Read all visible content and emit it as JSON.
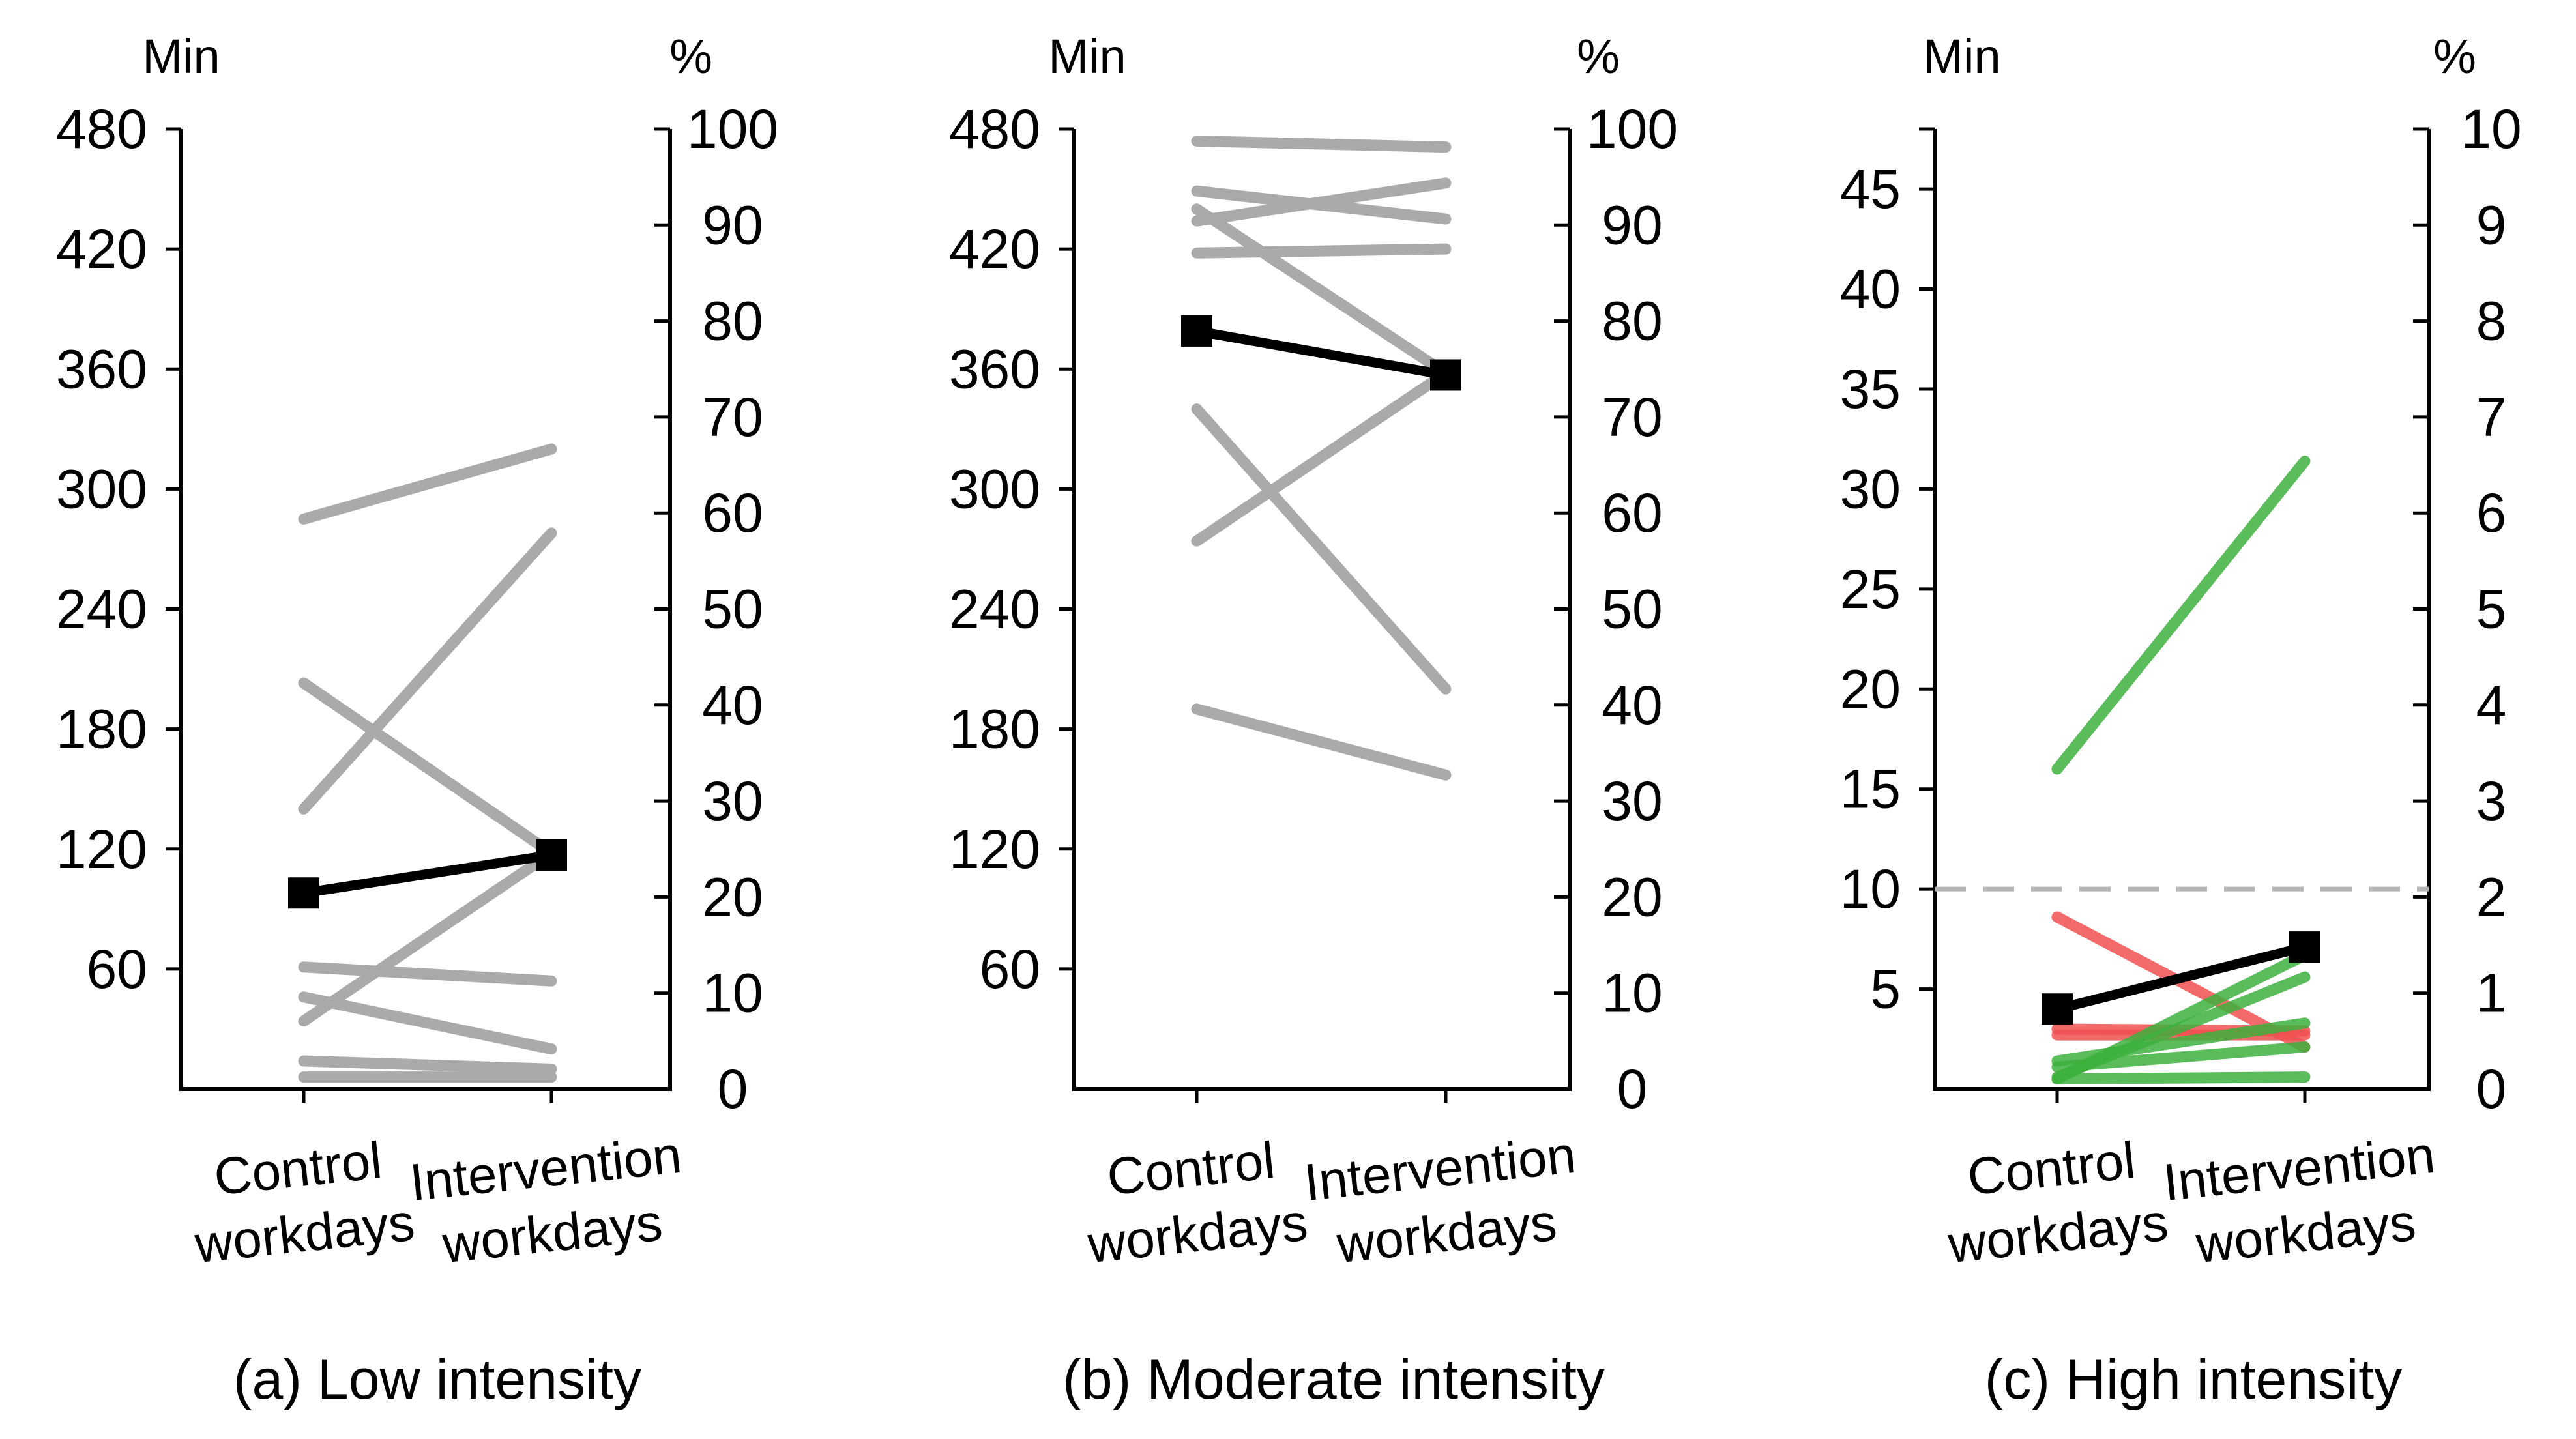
{
  "colors": {
    "axis": "#000000",
    "individual": "#aaaaaa",
    "mean": "#000000",
    "decrease": "#f05050",
    "increase": "#3db03d",
    "threshold": "#b4b4b4"
  },
  "chart_data": [
    {
      "type": "line",
      "caption": "(a) Low intensity",
      "left_unit": "Min",
      "right_unit": "%",
      "categories": [
        "Control workdays",
        "Intervention workdays"
      ],
      "category_lines": [
        [
          "Control",
          "workdays"
        ],
        [
          "Intervention",
          "workdays"
        ]
      ],
      "left_ylim": [
        0,
        480
      ],
      "left_ticks": [
        60,
        120,
        180,
        240,
        300,
        360,
        420,
        480
      ],
      "right_ylim": [
        0,
        100
      ],
      "right_ticks": [
        0,
        10,
        20,
        30,
        40,
        50,
        60,
        70,
        80,
        90,
        100
      ],
      "series": [
        {
          "name": "participant",
          "role": "individual",
          "values": [
            285,
            320
          ]
        },
        {
          "name": "participant",
          "role": "individual",
          "values": [
            140,
            278
          ]
        },
        {
          "name": "participant",
          "role": "individual",
          "values": [
            203,
            118
          ]
        },
        {
          "name": "participant",
          "role": "individual",
          "values": [
            34,
            118
          ]
        },
        {
          "name": "participant",
          "role": "individual",
          "values": [
            61,
            54
          ]
        },
        {
          "name": "participant",
          "role": "individual",
          "values": [
            46,
            20
          ]
        },
        {
          "name": "participant",
          "role": "individual",
          "values": [
            14,
            10
          ]
        },
        {
          "name": "participant",
          "role": "individual",
          "values": [
            6,
            6
          ]
        },
        {
          "name": "mean",
          "role": "mean",
          "values": [
            98,
            117
          ]
        }
      ]
    },
    {
      "type": "line",
      "caption": "(b) Moderate intensity",
      "left_unit": "Min",
      "right_unit": "%",
      "categories": [
        "Control workdays",
        "Intervention workdays"
      ],
      "category_lines": [
        [
          "Control",
          "workdays"
        ],
        [
          "Intervention",
          "workdays"
        ]
      ],
      "left_ylim": [
        0,
        480
      ],
      "left_ticks": [
        60,
        120,
        180,
        240,
        300,
        360,
        420,
        480
      ],
      "right_ylim": [
        0,
        100
      ],
      "right_ticks": [
        0,
        10,
        20,
        30,
        40,
        50,
        60,
        70,
        80,
        90,
        100
      ],
      "series": [
        {
          "name": "participant",
          "role": "individual",
          "values": [
            474,
            471
          ]
        },
        {
          "name": "participant",
          "role": "individual",
          "values": [
            449,
            435
          ]
        },
        {
          "name": "participant",
          "role": "individual",
          "values": [
            434,
            453
          ]
        },
        {
          "name": "participant",
          "role": "individual",
          "values": [
            418,
            420
          ]
        },
        {
          "name": "participant",
          "role": "individual",
          "values": [
            440,
            358
          ]
        },
        {
          "name": "participant",
          "role": "individual",
          "values": [
            274,
            358
          ]
        },
        {
          "name": "participant",
          "role": "individual",
          "values": [
            340,
            200
          ]
        },
        {
          "name": "participant",
          "role": "individual",
          "values": [
            190,
            157
          ]
        },
        {
          "name": "mean",
          "role": "mean",
          "values": [
            379,
            357
          ]
        }
      ]
    },
    {
      "type": "line",
      "caption": "(c) High intensity",
      "left_unit": "Min",
      "right_unit": "%",
      "categories": [
        "Control workdays",
        "Intervention workdays"
      ],
      "category_lines": [
        [
          "Control",
          "workdays"
        ],
        [
          "Intervention",
          "workdays"
        ]
      ],
      "left_ylim": [
        0,
        48
      ],
      "left_ticks": [
        5,
        10,
        15,
        20,
        25,
        30,
        35,
        40,
        45
      ],
      "right_ylim": [
        0,
        10
      ],
      "right_ticks": [
        0,
        1,
        2,
        3,
        4,
        5,
        6,
        7,
        8,
        9,
        10
      ],
      "threshold": 10,
      "series": [
        {
          "name": "participant",
          "role": "decrease",
          "values": [
            8.6,
            2.1
          ]
        },
        {
          "name": "participant",
          "role": "decrease",
          "values": [
            3.0,
            2.9
          ]
        },
        {
          "name": "participant",
          "role": "decrease",
          "values": [
            2.7,
            2.7
          ]
        },
        {
          "name": "participant",
          "role": "increase",
          "values": [
            16.0,
            31.4
          ]
        },
        {
          "name": "participant",
          "role": "increase",
          "values": [
            0.5,
            6.7
          ]
        },
        {
          "name": "participant",
          "role": "increase",
          "values": [
            0.6,
            5.6
          ]
        },
        {
          "name": "participant",
          "role": "increase",
          "values": [
            1.4,
            3.3
          ]
        },
        {
          "name": "participant",
          "role": "increase",
          "values": [
            1.1,
            2.1
          ]
        },
        {
          "name": "participant",
          "role": "increase",
          "values": [
            0.5,
            0.6
          ]
        },
        {
          "name": "mean",
          "role": "mean",
          "values": [
            4.0,
            7.1
          ]
        }
      ]
    }
  ]
}
